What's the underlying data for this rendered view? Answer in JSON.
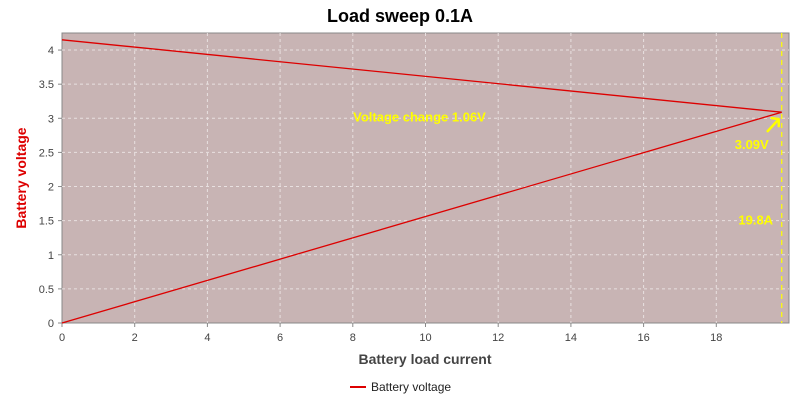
{
  "chart_data": {
    "type": "line",
    "title": "Load sweep 0.1A",
    "xlabel": "Battery load current",
    "ylabel": "Battery voltage",
    "xlim": [
      0,
      20
    ],
    "ylim": [
      0,
      4.25
    ],
    "x_ticks": [
      "0",
      "2",
      "4",
      "6",
      "8",
      "10",
      "12",
      "14",
      "16",
      "18"
    ],
    "y_ticks": [
      "0",
      "0.5",
      "1",
      "1.5",
      "2",
      "2.5",
      "3",
      "3.5",
      "4"
    ],
    "grid": true,
    "legend_position": "bottom",
    "series": [
      {
        "name": "Battery voltage",
        "color": "#dd0000",
        "points": [
          [
            0,
            0
          ],
          [
            19.8,
            3.09
          ],
          [
            0,
            4.15
          ]
        ]
      }
    ],
    "annotations": {
      "voltage_change": "Voltage change 1.06V",
      "end_voltage": "3.09V",
      "end_current": "19.8A",
      "marker_x": 19.8,
      "marker_y": 3.09,
      "color": "#ffff00"
    },
    "colors": {
      "plot_background": "#c8b4b4",
      "axis_label": "#dd0000",
      "grid": "#e8e0e0"
    }
  }
}
